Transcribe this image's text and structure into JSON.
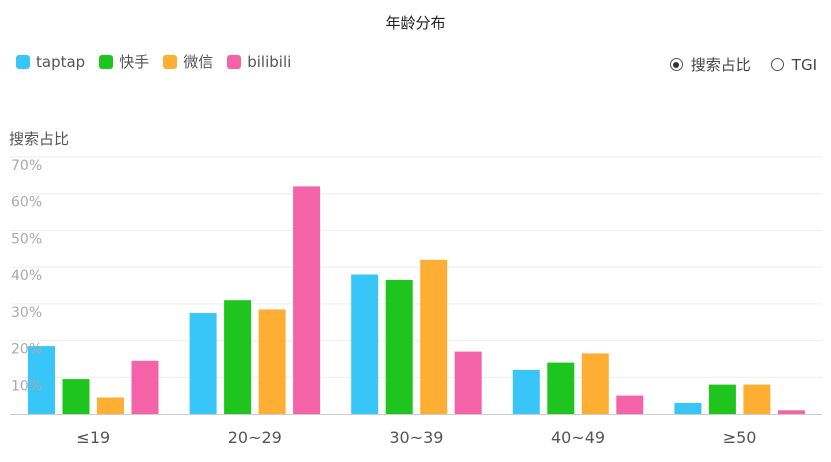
{
  "chart_data": {
    "type": "bar",
    "title": "年龄分布",
    "ylabel": "搜索占比",
    "categories": [
      "≤19",
      "20~29",
      "30~39",
      "40~49",
      "≥50"
    ],
    "yticks": [
      "70%",
      "60%",
      "50%",
      "40%",
      "30%",
      "20%",
      "10%"
    ],
    "ylim": [
      0,
      70
    ],
    "grid": true,
    "legend_position": "top-left",
    "series": [
      {
        "name": "taptap",
        "color": "#38C6F8",
        "values": [
          18.5,
          27.5,
          38,
          12,
          3
        ]
      },
      {
        "name": "快手",
        "color": "#1EC51E",
        "values": [
          9.5,
          31,
          36.5,
          14,
          8
        ]
      },
      {
        "name": "微信",
        "color": "#FEAE33",
        "values": [
          4.5,
          28.5,
          42,
          16.5,
          8
        ]
      },
      {
        "name": "bilibili",
        "color": "#F463A7",
        "values": [
          14.5,
          62,
          17,
          5,
          1
        ]
      }
    ]
  },
  "controls": {
    "options": [
      {
        "label": "搜索占比",
        "selected": true
      },
      {
        "label": "TGI",
        "selected": false
      }
    ]
  }
}
